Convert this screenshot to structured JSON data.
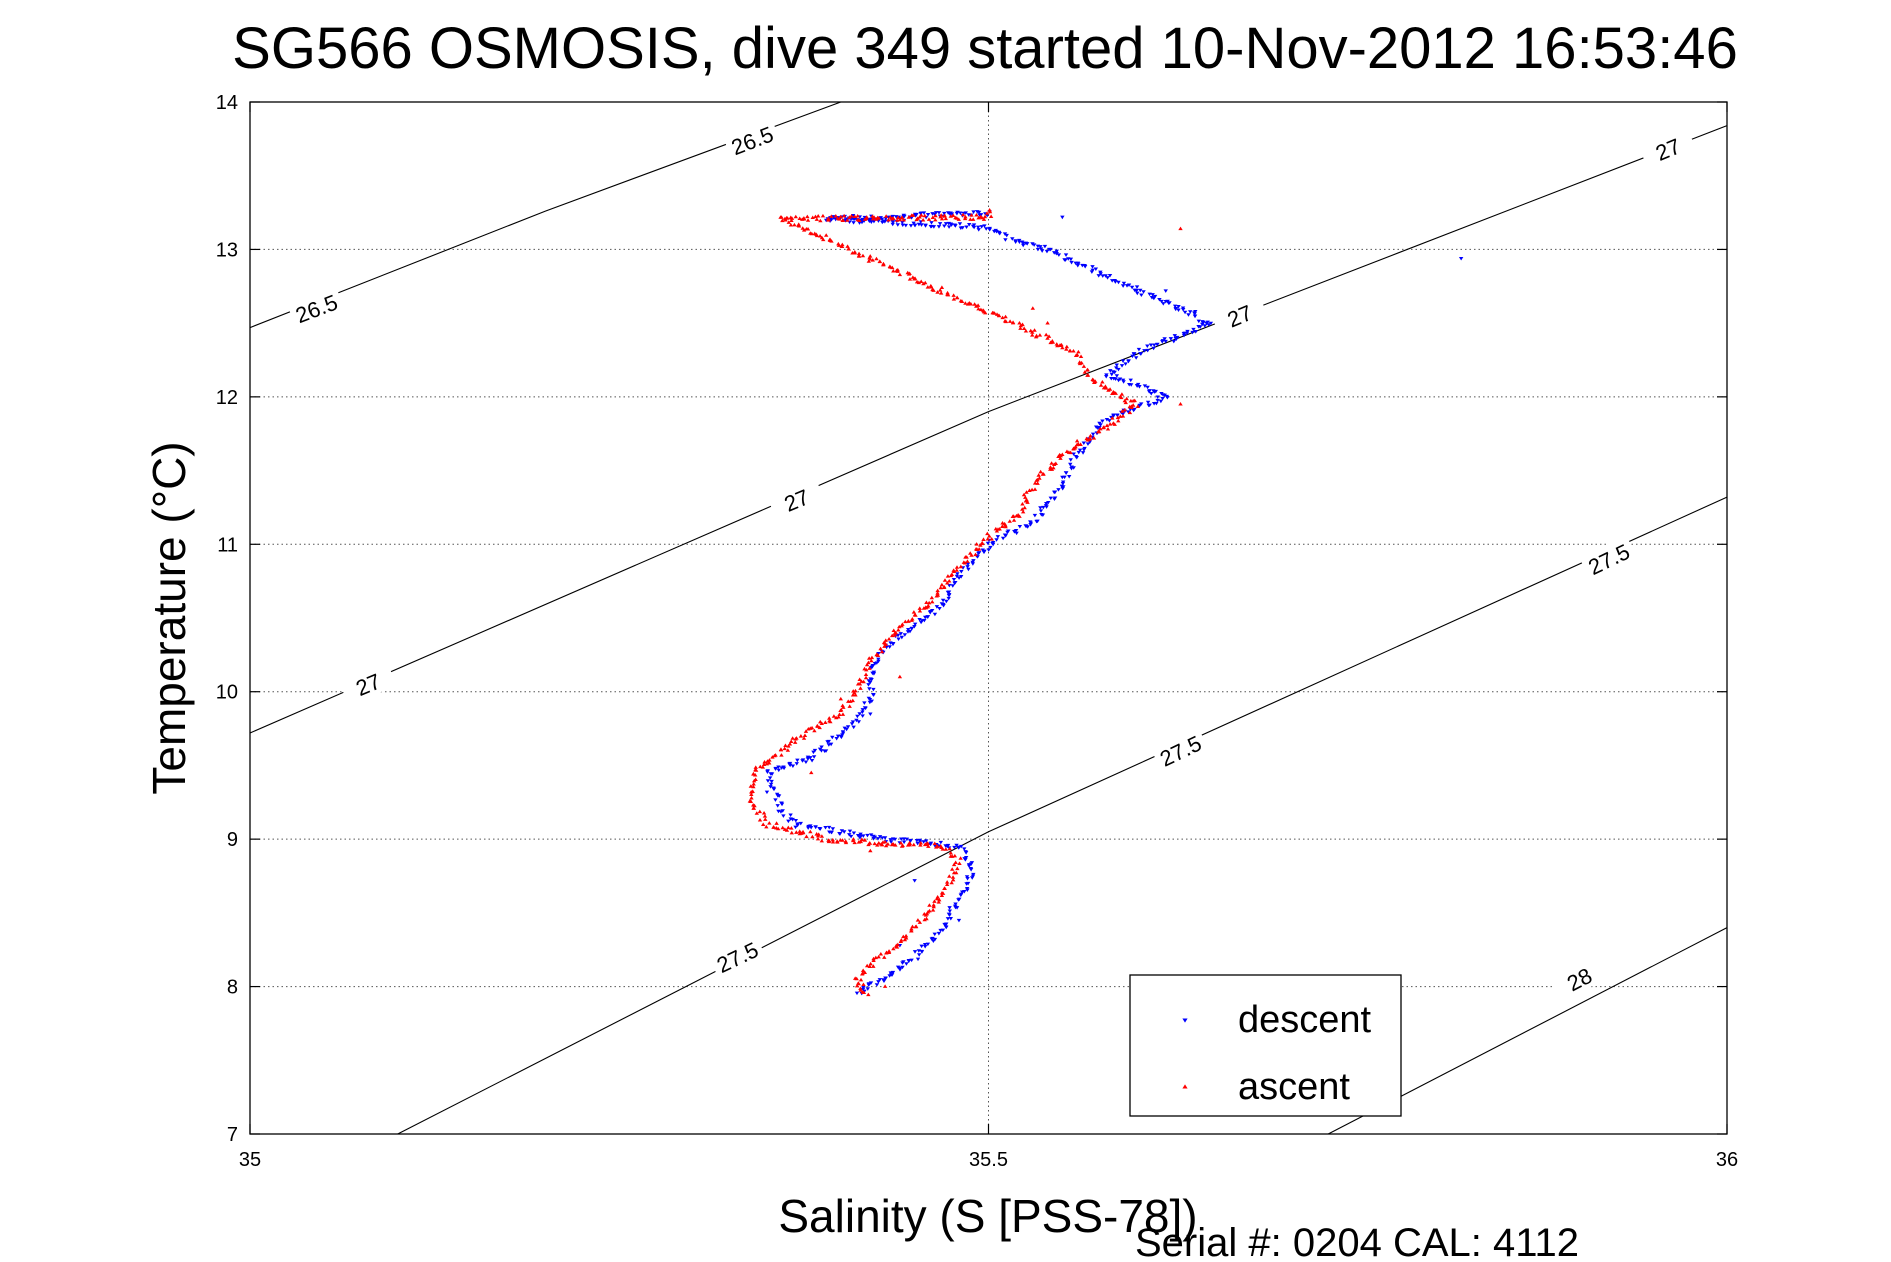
{
  "chart_data": {
    "type": "scatter",
    "title": "SG566 OSMOSIS, dive 349 started 10-Nov-2012 16:53:46",
    "xlabel": "Salinity (S [PSS-78])",
    "ylabel": "Temperature (°C)",
    "xlim": [
      35,
      36
    ],
    "ylim": [
      7,
      14
    ],
    "x_ticks": [
      35,
      35.5,
      36
    ],
    "x_tick_labels": [
      "35",
      "35.5",
      "36"
    ],
    "y_ticks": [
      7,
      8,
      9,
      10,
      11,
      12,
      13,
      14
    ],
    "y_tick_labels": [
      "7",
      "8",
      "9",
      "10",
      "11",
      "12",
      "13",
      "14"
    ],
    "grid": true,
    "legend_position": "bottom-right",
    "footer": "Serial #: 0204  CAL: 4112",
    "series": [
      {
        "name": "descent",
        "color": "#0000ff",
        "marker": "down-triangle",
        "path": [
          [
            35.5,
            13.25
          ],
          [
            35.47,
            13.24
          ],
          [
            35.43,
            13.22
          ],
          [
            35.39,
            13.21
          ],
          [
            35.5,
            13.15
          ],
          [
            35.52,
            13.05
          ],
          [
            35.54,
            13.0
          ],
          [
            35.65,
            12.5
          ],
          [
            35.6,
            12.3
          ],
          [
            35.58,
            12.15
          ],
          [
            35.6,
            12.08
          ],
          [
            35.62,
            12.0
          ],
          [
            35.58,
            11.85
          ],
          [
            35.56,
            11.6
          ],
          [
            35.55,
            11.4
          ],
          [
            35.53,
            11.15
          ],
          [
            35.5,
            11.0
          ],
          [
            35.48,
            10.8
          ],
          [
            35.47,
            10.6
          ],
          [
            35.45,
            10.45
          ],
          [
            35.43,
            10.3
          ],
          [
            35.42,
            10.1
          ],
          [
            35.42,
            9.95
          ],
          [
            35.41,
            9.8
          ],
          [
            35.38,
            9.55
          ],
          [
            35.35,
            9.45
          ],
          [
            35.36,
            9.2
          ],
          [
            35.37,
            9.1
          ],
          [
            35.43,
            9.0
          ],
          [
            35.48,
            8.95
          ],
          [
            35.49,
            8.8
          ],
          [
            35.48,
            8.6
          ],
          [
            35.47,
            8.4
          ],
          [
            35.45,
            8.2
          ],
          [
            35.43,
            8.05
          ],
          [
            35.41,
            7.96
          ]
        ],
        "scatter": [
          [
            35.82,
            12.94
          ],
          [
            35.55,
            13.22
          ],
          [
            35.62,
            12.72
          ],
          [
            35.64,
            12.58
          ],
          [
            35.42,
            9.85
          ],
          [
            35.4,
            9.7
          ],
          [
            35.39,
            9.6
          ],
          [
            35.35,
            9.32
          ],
          [
            35.45,
            8.72
          ],
          [
            35.44,
            8.28
          ],
          [
            35.48,
            8.45
          ]
        ]
      },
      {
        "name": "ascent",
        "color": "#ff0000",
        "marker": "up-triangle",
        "path": [
          [
            35.5,
            13.27
          ],
          [
            35.5,
            13.22
          ],
          [
            35.43,
            13.21
          ],
          [
            35.36,
            13.21
          ],
          [
            35.56,
            12.3
          ],
          [
            35.57,
            12.12
          ],
          [
            35.59,
            12.0
          ],
          [
            35.6,
            11.95
          ],
          [
            35.58,
            11.8
          ],
          [
            35.55,
            11.6
          ],
          [
            35.53,
            11.4
          ],
          [
            35.52,
            11.2
          ],
          [
            35.5,
            11.05
          ],
          [
            35.48,
            10.85
          ],
          [
            35.46,
            10.6
          ],
          [
            35.44,
            10.45
          ],
          [
            35.42,
            10.2
          ],
          [
            35.41,
            10.0
          ],
          [
            35.4,
            9.85
          ],
          [
            35.38,
            9.75
          ],
          [
            35.36,
            9.6
          ],
          [
            35.34,
            9.45
          ],
          [
            35.34,
            9.25
          ],
          [
            35.35,
            9.1
          ],
          [
            35.39,
            9.0
          ],
          [
            35.44,
            8.96
          ],
          [
            35.47,
            8.95
          ],
          [
            35.48,
            8.85
          ],
          [
            35.47,
            8.65
          ],
          [
            35.46,
            8.5
          ],
          [
            35.44,
            8.3
          ],
          [
            35.42,
            8.15
          ],
          [
            35.41,
            8.03
          ],
          [
            35.42,
            7.95
          ]
        ],
        "scatter": [
          [
            35.63,
            13.14
          ],
          [
            35.4,
            13.22
          ],
          [
            35.53,
            12.6
          ],
          [
            35.54,
            12.5
          ],
          [
            35.63,
            11.95
          ],
          [
            35.56,
            11.7
          ],
          [
            35.44,
            10.1
          ],
          [
            35.4,
            9.95
          ],
          [
            35.38,
            9.45
          ],
          [
            35.42,
            8.92
          ],
          [
            35.43,
            8.98
          ],
          [
            35.46,
            8.55
          ],
          [
            35.43,
            8.0
          ]
        ]
      }
    ],
    "isopycnals": [
      {
        "label": "26.5",
        "points": [
          [
            35.0,
            12.47
          ],
          [
            35.2,
            13.26
          ],
          [
            35.4,
            14.0
          ]
        ],
        "label_positions": [
          [
            35.045,
            12.6
          ],
          [
            35.34,
            13.74
          ]
        ]
      },
      {
        "label": "27",
        "points": [
          [
            35.0,
            9.72
          ],
          [
            35.5,
            11.9
          ],
          [
            36.0,
            13.84
          ]
        ],
        "label_positions": [
          [
            35.08,
            10.05
          ],
          [
            35.37,
            11.3
          ],
          [
            35.67,
            12.55
          ],
          [
            35.96,
            13.68
          ]
        ]
      },
      {
        "label": "27.5",
        "points": [
          [
            35.1,
            7.0
          ],
          [
            35.5,
            9.05
          ],
          [
            36.0,
            11.32
          ]
        ],
        "label_positions": [
          [
            35.33,
            8.2
          ],
          [
            35.63,
            9.6
          ],
          [
            35.92,
            10.9
          ]
        ]
      },
      {
        "label": "28",
        "points": [
          [
            35.73,
            7.0
          ],
          [
            36.0,
            8.4
          ]
        ],
        "label_positions": [
          [
            35.9,
            8.05
          ]
        ]
      }
    ]
  }
}
